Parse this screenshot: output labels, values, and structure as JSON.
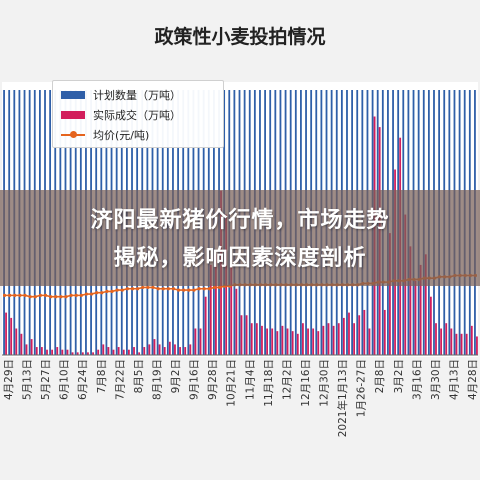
{
  "chart_data": {
    "type": "bar",
    "title": "政策性小麦投拍情况",
    "legend": [
      {
        "key": "planned",
        "label": "计划数量（万吨）",
        "color": "#2f5fa8",
        "kind": "bar"
      },
      {
        "key": "actual",
        "label": "实际成交（万吨）",
        "color": "#d21e5c",
        "kind": "bar"
      },
      {
        "key": "avg_price",
        "label": "均价(元/吨)",
        "color": "#e5641e",
        "kind": "line"
      }
    ],
    "x_tick_labels": [
      "4月29日",
      "5月13日",
      "5月27日",
      "6月10日",
      "6月24日",
      "7月8日",
      "7月22日",
      "8月5日",
      "8月19日",
      "9月2日",
      "9月16日",
      "9月28日",
      "10月21日",
      "11月4日",
      "11月18日",
      "12月2日",
      "12月16日",
      "12月30日",
      "2021年1月13日",
      "1月26-27日",
      "2月8日",
      "3月2日",
      "3月16日",
      "3月30日",
      "4月13日",
      "4月28日"
    ],
    "series": [
      {
        "name": "计划数量（万吨）",
        "values": [
          100,
          100,
          100,
          100,
          100,
          100,
          100,
          100,
          100,
          100,
          100,
          100,
          100,
          100,
          100,
          100,
          100,
          100,
          100,
          100,
          100,
          100,
          100,
          100,
          100,
          100,
          100,
          100,
          100,
          100,
          100,
          100,
          100,
          100,
          100,
          100,
          100,
          100,
          100,
          100,
          100,
          100,
          100,
          100,
          100,
          100,
          100,
          100,
          100,
          100,
          100,
          100,
          100,
          100,
          100,
          100,
          100,
          100,
          100,
          100,
          100,
          100,
          100,
          100,
          100,
          100,
          100,
          100,
          100,
          100,
          100,
          100,
          100,
          100,
          100,
          100,
          100,
          100,
          100,
          100,
          100,
          100,
          100,
          100,
          100,
          100,
          100,
          100,
          100,
          100,
          100,
          100,
          100
        ]
      },
      {
        "name": "实际成交（万吨）",
        "values": [
          16,
          14,
          10,
          8,
          4,
          6,
          3,
          3,
          2,
          2,
          3,
          2,
          2,
          1,
          1,
          1,
          1,
          1,
          2,
          4,
          3,
          2,
          3,
          2,
          2,
          3,
          1,
          3,
          4,
          6,
          4,
          3,
          5,
          4,
          3,
          3,
          4,
          10,
          10,
          22,
          34,
          38,
          62,
          53,
          37,
          25,
          15,
          15,
          12,
          12,
          11,
          10,
          10,
          9,
          11,
          10,
          9,
          8,
          12,
          10,
          10,
          9,
          11,
          12,
          11,
          12,
          14,
          16,
          12,
          15,
          17,
          10,
          90,
          86,
          17,
          46,
          70,
          82,
          53,
          41,
          28,
          34,
          38,
          22,
          12,
          10,
          12,
          10,
          8,
          8,
          8,
          11,
          7
        ]
      },
      {
        "name": "均价(元/吨)",
        "values": [
          2250,
          2250,
          2250,
          2250,
          2250,
          2240,
          2240,
          2250,
          2250,
          2240,
          2240,
          2240,
          2240,
          2250,
          2250,
          2250,
          2260,
          2260,
          2270,
          2270,
          2280,
          2280,
          2290,
          2290,
          2300,
          2300,
          2300,
          2310,
          2310,
          2310,
          2300,
          2300,
          2300,
          2300,
          2290,
          2290,
          2290,
          2290,
          2300,
          2300,
          2300,
          2310,
          2310,
          2320,
          2320,
          2330,
          2330,
          2330,
          2330,
          2330,
          2330,
          2330,
          2330,
          2330,
          2330,
          2330,
          2330,
          2330,
          2330,
          2330,
          2330,
          2330,
          2330,
          2330,
          2330,
          2330,
          2330,
          2330,
          2330,
          2330,
          2340,
          2340,
          2340,
          2350,
          2350,
          2350,
          2360,
          2360,
          2360,
          2370,
          2370,
          2370,
          2380,
          2380,
          2380,
          2390,
          2390,
          2390,
          2400,
          2400,
          2400,
          2400,
          2400
        ]
      }
    ],
    "ylim_planned": [
      0,
      100
    ],
    "grid": false,
    "legend_position": "top-left"
  },
  "overlay": {
    "headline_line1": "济阳最新猪价行情，市场走势",
    "headline_line2": "揭秘，影响因素深度剖析"
  },
  "colors": {
    "background": "#f2f2f2",
    "planned": "#2f5fa8",
    "actual": "#d21e5c",
    "avg_price": "#e5641e",
    "banner": "#786058"
  }
}
